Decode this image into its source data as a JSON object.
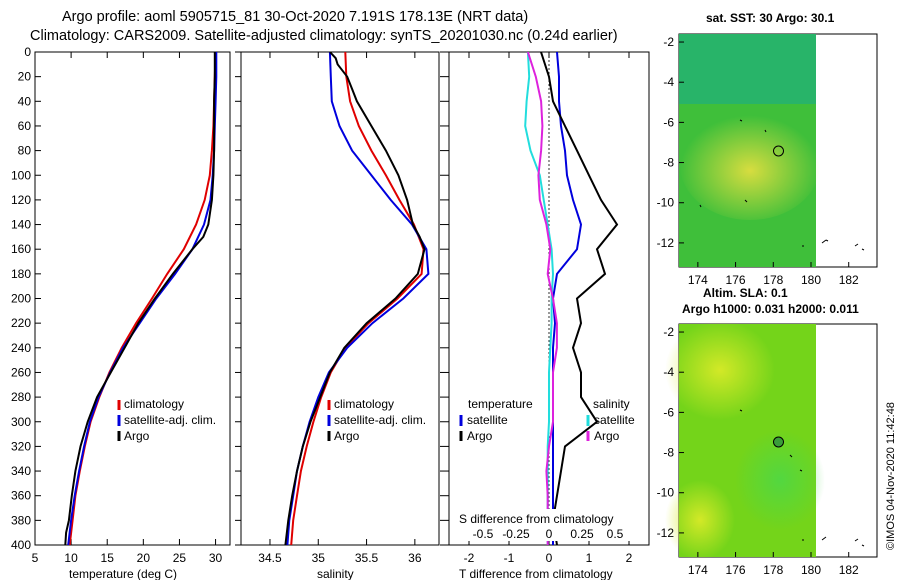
{
  "header": {
    "line1": "Argo profile: aoml 5905715_81 30-Oct-2020 7.191S 178.13E (NRT data)",
    "line2": "Climatology: CARS2009. Satellite-adjusted climatology: synTS_20201030.nc (0.24d earlier)"
  },
  "stamp": "©IMOS 04-Nov-2020 11:42:48",
  "colors": {
    "climatology": "#e00000",
    "satellite": "#0000dd",
    "argo": "#000000",
    "salinity_satellite": "#22dddd",
    "salinity_argo": "#dd22dd"
  },
  "chart_data": [
    {
      "id": "temperature",
      "type": "line",
      "xlabel": "temperature (deg C)",
      "ylabel": "",
      "xlim": [
        5,
        32
      ],
      "ylim": [
        400,
        0
      ],
      "xticks": [
        5,
        10,
        15,
        20,
        25,
        30
      ],
      "yticks": [
        0,
        20,
        40,
        60,
        80,
        100,
        120,
        140,
        160,
        180,
        200,
        220,
        240,
        260,
        280,
        300,
        320,
        340,
        360,
        380,
        400
      ],
      "legend": [
        "climatology",
        "satellite-adj. clim.",
        "Argo"
      ],
      "series": [
        {
          "name": "climatology",
          "color": "#e00000",
          "depth": [
            0,
            20,
            40,
            60,
            80,
            100,
            120,
            140,
            160,
            180,
            200,
            220,
            240,
            260,
            280,
            300,
            320,
            340,
            360,
            380,
            400
          ],
          "values": [
            30.0,
            29.9,
            29.8,
            29.7,
            29.5,
            29.2,
            28.5,
            27.3,
            25.6,
            23.3,
            21.2,
            19.0,
            17.0,
            15.3,
            13.9,
            12.7,
            11.9,
            11.2,
            10.6,
            10.2,
            9.8
          ]
        },
        {
          "name": "satellite-adj. clim.",
          "color": "#0000dd",
          "depth": [
            0,
            20,
            40,
            60,
            80,
            100,
            120,
            140,
            160,
            180,
            200,
            220,
            240,
            260,
            280,
            300,
            320,
            340,
            360,
            380,
            400
          ],
          "values": [
            30.1,
            30.1,
            30.0,
            29.9,
            29.8,
            29.6,
            29.3,
            28.4,
            26.8,
            24.4,
            21.8,
            19.5,
            17.2,
            15.4,
            13.8,
            12.6,
            11.8,
            11.1,
            10.5,
            10.0,
            9.6
          ]
        },
        {
          "name": "Argo",
          "color": "#000000",
          "depth": [
            0,
            20,
            40,
            60,
            80,
            100,
            120,
            140,
            150,
            160,
            180,
            200,
            220,
            240,
            260,
            280,
            300,
            320,
            340,
            360,
            380,
            390,
            400
          ],
          "values": [
            29.9,
            29.9,
            29.8,
            29.8,
            29.8,
            29.7,
            29.5,
            29.0,
            28.3,
            26.8,
            24.1,
            21.6,
            19.3,
            17.4,
            15.5,
            13.6,
            12.3,
            11.3,
            10.6,
            10.1,
            9.7,
            9.3,
            9.2
          ]
        }
      ]
    },
    {
      "id": "salinity",
      "type": "line",
      "xlabel": "salinity",
      "ylabel": "",
      "xlim": [
        34.2,
        36.25
      ],
      "ylim": [
        400,
        0
      ],
      "xticks": [
        34.5,
        35,
        35.5,
        36
      ],
      "xticklabels": [
        "34.5",
        "35",
        "35.5",
        "36"
      ],
      "legend": [
        "climatology",
        "satellite-adj. clim.",
        "Argo"
      ],
      "series": [
        {
          "name": "climatology",
          "color": "#e00000",
          "depth": [
            0,
            20,
            40,
            60,
            80,
            100,
            120,
            140,
            160,
            180,
            200,
            220,
            240,
            260,
            280,
            300,
            320,
            340,
            360,
            380,
            400
          ],
          "values": [
            35.28,
            35.29,
            35.33,
            35.42,
            35.55,
            35.7,
            35.84,
            35.99,
            36.09,
            36.07,
            35.82,
            35.52,
            35.28,
            35.13,
            35.03,
            34.95,
            34.88,
            34.82,
            34.78,
            34.74,
            34.72
          ]
        },
        {
          "name": "satellite-adj. clim.",
          "color": "#0000dd",
          "depth": [
            0,
            20,
            40,
            60,
            80,
            100,
            120,
            140,
            160,
            180,
            200,
            220,
            240,
            260,
            280,
            300,
            320,
            340,
            360,
            380,
            400
          ],
          "values": [
            35.12,
            35.13,
            35.14,
            35.22,
            35.35,
            35.55,
            35.75,
            35.97,
            36.12,
            36.14,
            35.88,
            35.56,
            35.3,
            35.11,
            35.0,
            34.91,
            34.84,
            34.78,
            34.74,
            34.7,
            34.68
          ]
        },
        {
          "name": "Argo",
          "color": "#000000",
          "depth": [
            0,
            5,
            10,
            20,
            30,
            40,
            60,
            80,
            100,
            120,
            140,
            150,
            160,
            180,
            200,
            220,
            240,
            260,
            280,
            300,
            320,
            340,
            360,
            380,
            400
          ],
          "values": [
            35.12,
            35.18,
            35.2,
            35.3,
            35.35,
            35.4,
            35.55,
            35.7,
            35.83,
            35.92,
            35.98,
            36.05,
            36.1,
            36.03,
            35.8,
            35.5,
            35.27,
            35.12,
            35.02,
            34.92,
            34.84,
            34.78,
            34.73,
            34.69,
            34.66
          ]
        }
      ]
    },
    {
      "id": "difference",
      "type": "line",
      "xlabel": "T difference from climatology",
      "xlabel_top": "S difference from climatology",
      "xlim": [
        -2.5,
        2.5
      ],
      "ylim": [
        400,
        0
      ],
      "xticks": [
        -2,
        -1,
        0,
        1,
        2
      ],
      "top_ticks": [
        -0.5,
        -0.25,
        0,
        0.25,
        0.5
      ],
      "top_tick_labels": [
        "-0.5",
        "-0.25",
        "0",
        "0.25",
        "0.5"
      ],
      "legend_temperature_title": "temperature",
      "legend_salinity_title": "salinity",
      "legend_left": [
        "satellite",
        "Argo"
      ],
      "legend_right": [
        "satellite",
        "Argo"
      ],
      "series": [
        {
          "name": "T satellite",
          "color": "#0000dd",
          "depth": [
            0,
            20,
            40,
            60,
            80,
            100,
            120,
            140,
            160,
            180,
            200,
            220,
            240,
            260,
            280,
            300,
            320,
            340,
            360,
            380,
            400
          ],
          "values": [
            0.2,
            0.25,
            0.25,
            0.3,
            0.4,
            0.45,
            0.6,
            0.8,
            0.7,
            0.2,
            0.1,
            0.15,
            0.1,
            0.1,
            0.1,
            0.1,
            0.1,
            0.1,
            0.1,
            0.1,
            0.1
          ]
        },
        {
          "name": "T Argo",
          "color": "#000000",
          "depth": [
            0,
            20,
            40,
            60,
            80,
            100,
            120,
            140,
            160,
            180,
            200,
            220,
            240,
            260,
            280,
            300,
            320,
            340,
            360,
            380,
            400
          ],
          "values": [
            -0.2,
            0.0,
            0.1,
            0.4,
            0.7,
            1.0,
            1.3,
            1.7,
            1.2,
            1.4,
            0.7,
            0.8,
            0.6,
            0.8,
            0.8,
            1.2,
            0.4,
            0.3,
            0.2,
            0.1,
            0.2
          ]
        },
        {
          "name": "S satellite",
          "color": "#22dddd",
          "depth": [
            0,
            20,
            40,
            60,
            80,
            100,
            120,
            140,
            160,
            180,
            200,
            220,
            240,
            260,
            280,
            300,
            320,
            340,
            360,
            380,
            400
          ],
          "values": [
            -0.16,
            -0.15,
            -0.17,
            -0.18,
            -0.14,
            -0.07,
            -0.04,
            -0.01,
            0.02,
            0.03,
            0.02,
            0.02,
            0.01,
            0.0,
            0.0,
            0.0,
            -0.01,
            -0.01,
            -0.01,
            -0.01,
            -0.01
          ]
        },
        {
          "name": "S Argo",
          "color": "#dd22dd",
          "depth": [
            0,
            20,
            40,
            60,
            80,
            100,
            120,
            140,
            160,
            180,
            200,
            220,
            240,
            260,
            280,
            300,
            320,
            340,
            360,
            380,
            400
          ],
          "values": [
            -0.16,
            -0.1,
            -0.06,
            -0.05,
            -0.06,
            -0.08,
            -0.07,
            -0.02,
            0.01,
            -0.01,
            0.03,
            0.06,
            0.06,
            0.03,
            0.03,
            0.03,
            0.0,
            -0.02,
            -0.01,
            -0.01,
            -0.01
          ]
        }
      ]
    },
    {
      "id": "sst_map",
      "type": "heatmap",
      "title": "sat. SST: 30 Argo: 30.1",
      "xlim": [
        173,
        183.5
      ],
      "ylim": [
        -13.2,
        -1.6
      ],
      "xticks": [
        174,
        176,
        178,
        180,
        182
      ],
      "yticks": [
        -2,
        -4,
        -6,
        -8,
        -10,
        -12
      ],
      "data_lon_range": [
        173,
        180
      ],
      "argo_position": {
        "lon": 178.13,
        "lat": -7.191
      }
    },
    {
      "id": "sla_map",
      "type": "heatmap",
      "title": "Altim. SLA: 0.1",
      "subtitle": "Argo h1000: 0.031 h2000: 0.011",
      "xlim": [
        173,
        183.5
      ],
      "ylim": [
        -13.2,
        -1.6
      ],
      "xticks": [
        174,
        176,
        178,
        180,
        182
      ],
      "yticks": [
        -2,
        -4,
        -6,
        -8,
        -10,
        -12
      ],
      "data_lon_range": [
        173,
        180
      ],
      "argo_position": {
        "lon": 178.13,
        "lat": -7.191
      }
    }
  ]
}
